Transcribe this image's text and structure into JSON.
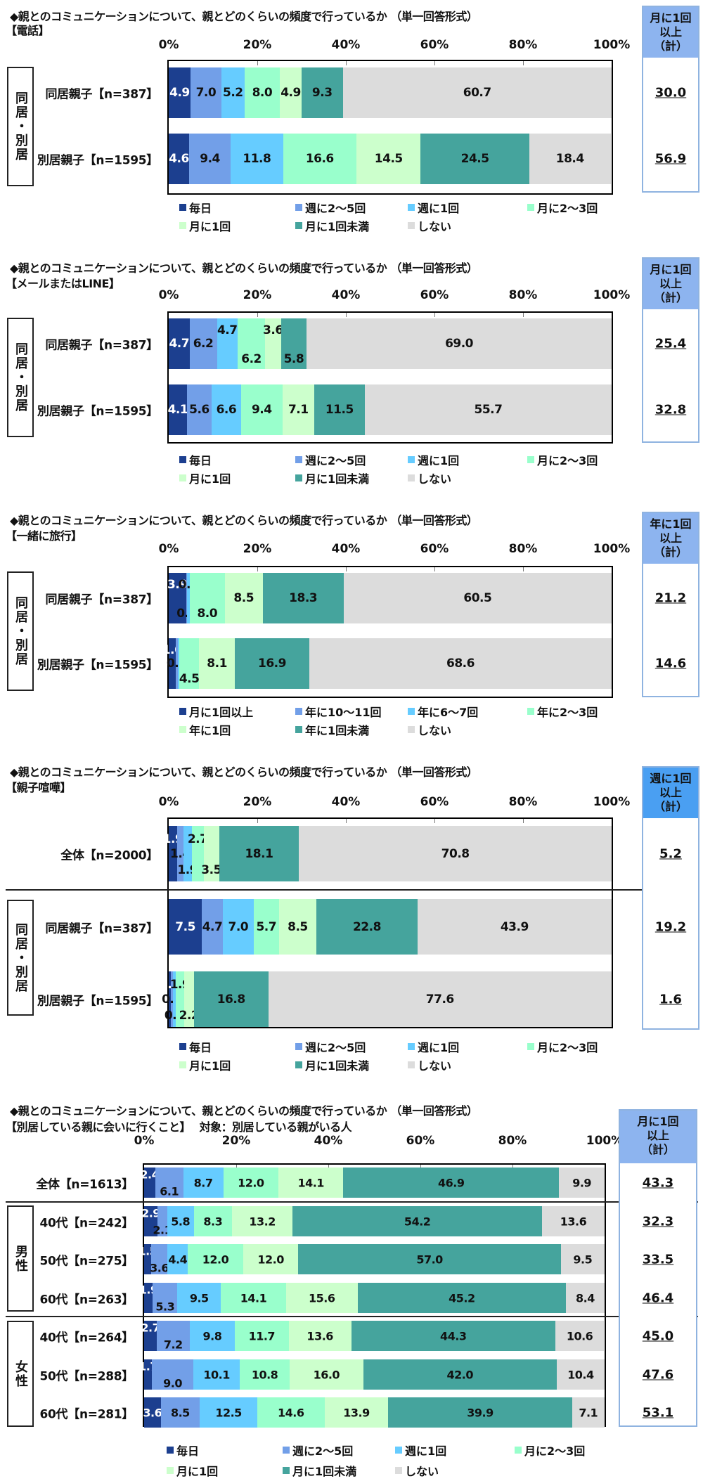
{
  "question": "◆親とのコミュニケーションについて、親とどのくらいの頻度で行っているか （単一回答形式）",
  "axis_ticks": [
    "0%",
    "20%",
    "40%",
    "60%",
    "80%",
    "100%"
  ],
  "colors": {
    "c1": "#1c3f8f",
    "c2": "#729fe8",
    "c3": "#66ccff",
    "c4": "#99ffcc",
    "c5": "#ccffcc",
    "c6": "#45a49d",
    "c7": "#dcdcdc"
  },
  "legends": {
    "freq_month": [
      "毎日",
      "週に2～5回",
      "週に1回",
      "月に2～3回",
      "月に1回",
      "月に1回未満",
      "しない"
    ],
    "freq_year": [
      "月に1回以上",
      "年に10～11回",
      "年に6～7回",
      "年に2～3回",
      "年に1回",
      "年に1回未満",
      "しない"
    ]
  },
  "group_labels": {
    "living": "同居・別居",
    "male": "男性",
    "female": "女性"
  },
  "charts": [
    {
      "subtitle": "【電話】",
      "side_header": [
        "月に1回",
        "以上",
        "（計）"
      ],
      "rows": [
        {
          "label": "同居親子【n=387】",
          "total": "30.0"
        },
        {
          "label": "別居親子【n=1595】",
          "total": "56.9"
        }
      ]
    },
    {
      "subtitle": "【メールまたはLINE】",
      "side_header": [
        "月に1回",
        "以上",
        "（計）"
      ],
      "rows": [
        {
          "label": "同居親子【n=387】",
          "total": "25.4"
        },
        {
          "label": "別居親子【n=1595】",
          "total": "32.8"
        }
      ]
    },
    {
      "subtitle": "【一緒に旅行】",
      "side_header": [
        "年に1回",
        "以上",
        "（計）"
      ],
      "rows": [
        {
          "label": "同居親子【n=387】",
          "total": "21.2"
        },
        {
          "label": "別居親子【n=1595】",
          "total": "14.6"
        }
      ]
    },
    {
      "subtitle": "【親子喧嘩】",
      "side_header": [
        "週に1回",
        "以上",
        "（計）"
      ],
      "rows": [
        {
          "label": "全体【n=2000】",
          "total": "5.2"
        },
        {
          "label": "同居親子【n=387】",
          "total": "19.2"
        },
        {
          "label": "別居親子【n=1595】",
          "total": "1.6"
        }
      ]
    },
    {
      "subtitle": "【別居している親に会いに行くこと】　 対象：別居している親がいる人",
      "side_header": [
        "月に1回",
        "以上",
        "（計）"
      ],
      "rows": [
        {
          "label": "全体【n=1613】",
          "total": "43.3"
        },
        {
          "label": "40代【n=242】",
          "total": "32.3"
        },
        {
          "label": "50代【n=275】",
          "total": "33.5"
        },
        {
          "label": "60代【n=263】",
          "total": "46.4"
        },
        {
          "label": "40代【n=264】",
          "total": "45.0"
        },
        {
          "label": "50代【n=288】",
          "total": "47.6"
        },
        {
          "label": "60代【n=281】",
          "total": "53.1"
        }
      ]
    }
  ],
  "chart_data": [
    {
      "type": "bar",
      "stacked": true,
      "orientation": "horizontal",
      "title": "◆親とのコミュニケーションについて、親とどのくらいの頻度で行っているか （単一回答形式）【電話】",
      "xlabel": "",
      "ylabel": "",
      "xlim": [
        0,
        100
      ],
      "categories": [
        "同居親子【n=387】",
        "別居親子【n=1595】"
      ],
      "series": [
        {
          "name": "毎日",
          "values": [
            4.9,
            4.6
          ]
        },
        {
          "name": "週に2～5回",
          "values": [
            7.0,
            9.4
          ]
        },
        {
          "name": "週に1回",
          "values": [
            5.2,
            11.8
          ]
        },
        {
          "name": "月に2～3回",
          "values": [
            8.0,
            16.6
          ]
        },
        {
          "name": "月に1回",
          "values": [
            4.9,
            14.5
          ]
        },
        {
          "name": "月に1回未満",
          "values": [
            9.3,
            24.5
          ]
        },
        {
          "name": "しない",
          "values": [
            60.7,
            18.4
          ]
        }
      ],
      "summary": {
        "name": "月に1回以上（計）",
        "values": [
          30.0,
          56.9
        ]
      },
      "legend_position": "bottom"
    },
    {
      "type": "bar",
      "stacked": true,
      "orientation": "horizontal",
      "title": "◆親とのコミュニケーションについて、親とどのくらいの頻度で行っているか （単一回答形式）【メールまたはLINE】",
      "xlabel": "",
      "ylabel": "",
      "xlim": [
        0,
        100
      ],
      "categories": [
        "同居親子【n=387】",
        "別居親子【n=1595】"
      ],
      "series": [
        {
          "name": "毎日",
          "values": [
            4.7,
            4.1
          ]
        },
        {
          "name": "週に2～5回",
          "values": [
            6.2,
            5.6
          ]
        },
        {
          "name": "週に1回",
          "values": [
            4.7,
            6.6
          ]
        },
        {
          "name": "月に2～3回",
          "values": [
            6.2,
            9.4
          ]
        },
        {
          "name": "月に1回",
          "values": [
            3.6,
            7.1
          ]
        },
        {
          "name": "月に1回未満",
          "values": [
            5.8,
            11.5
          ]
        },
        {
          "name": "しない",
          "values": [
            69.0,
            55.7
          ]
        }
      ],
      "summary": {
        "name": "月に1回以上（計）",
        "values": [
          25.4,
          32.8
        ]
      },
      "legend_position": "bottom"
    },
    {
      "type": "bar",
      "stacked": true,
      "orientation": "horizontal",
      "title": "◆親とのコミュニケーションについて、親とどのくらいの頻度で行っているか （単一回答形式）【一緒に旅行】",
      "xlabel": "",
      "ylabel": "",
      "xlim": [
        0,
        100
      ],
      "categories": [
        "同居親子【n=387】",
        "別居親子【n=1595】"
      ],
      "series": [
        {
          "name": "月に1回以上",
          "values": [
            3.9,
            1.6
          ]
        },
        {
          "name": "年に10～11回",
          "values": [
            0.3,
            0.4
          ]
        },
        {
          "name": "年に6～7回",
          "values": [
            0.5,
            0.4
          ]
        },
        {
          "name": "年に2～3回",
          "values": [
            8.0,
            4.5
          ]
        },
        {
          "name": "年に1回",
          "values": [
            8.5,
            8.1
          ]
        },
        {
          "name": "年に1回未満",
          "values": [
            18.3,
            16.9
          ]
        },
        {
          "name": "しない",
          "values": [
            60.5,
            68.6
          ]
        }
      ],
      "summary": {
        "name": "年に1回以上（計）",
        "values": [
          21.2,
          14.6
        ]
      },
      "legend_position": "bottom"
    },
    {
      "type": "bar",
      "stacked": true,
      "orientation": "horizontal",
      "title": "◆親とのコミュニケーションについて、親とどのくらいの頻度で行っているか （単一回答形式）【親子喧嘩】",
      "xlabel": "",
      "ylabel": "",
      "xlim": [
        0,
        100
      ],
      "categories": [
        "全体【n=2000】",
        "同居親子【n=387】",
        "別居親子【n=1595】"
      ],
      "series": [
        {
          "name": "毎日",
          "values": [
            1.9,
            7.5,
            0.4
          ]
        },
        {
          "name": "週に2～5回",
          "values": [
            1.4,
            4.7,
            0.6
          ]
        },
        {
          "name": "週に1回",
          "values": [
            1.9,
            7.0,
            0.6
          ]
        },
        {
          "name": "月に2～3回",
          "values": [
            2.7,
            5.7,
            1.9
          ]
        },
        {
          "name": "月に1回",
          "values": [
            3.5,
            8.5,
            2.2
          ]
        },
        {
          "name": "月に1回未満",
          "values": [
            18.1,
            22.8,
            16.8
          ]
        },
        {
          "name": "しない",
          "values": [
            70.8,
            43.9,
            77.6
          ]
        }
      ],
      "summary": {
        "name": "週に1回以上（計）",
        "values": [
          5.2,
          19.2,
          1.6
        ]
      },
      "legend_position": "bottom"
    },
    {
      "type": "bar",
      "stacked": true,
      "orientation": "horizontal",
      "title": "◆親とのコミュニケーションについて、親とどのくらいの頻度で行っているか （単一回答形式）【別居している親に会いに行くこと】 対象：別居している親がいる人",
      "xlabel": "",
      "ylabel": "",
      "xlim": [
        0,
        100
      ],
      "categories": [
        "全体【n=1613】",
        "男性 40代【n=242】",
        "男性 50代【n=275】",
        "男性 60代【n=263】",
        "女性 40代【n=264】",
        "女性 50代【n=288】",
        "女性 60代【n=281】"
      ],
      "series": [
        {
          "name": "毎日",
          "values": [
            2.4,
            2.9,
            1.5,
            1.9,
            2.7,
            1.7,
            3.6
          ]
        },
        {
          "name": "週に2～5回",
          "values": [
            6.1,
            2.1,
            3.6,
            5.3,
            7.2,
            9.0,
            8.5
          ]
        },
        {
          "name": "週に1回",
          "values": [
            8.7,
            5.8,
            4.4,
            9.5,
            9.8,
            10.1,
            12.5
          ]
        },
        {
          "name": "月に2～3回",
          "values": [
            12.0,
            8.3,
            12.0,
            14.1,
            11.7,
            10.8,
            14.6
          ]
        },
        {
          "name": "月に1回",
          "values": [
            14.1,
            13.2,
            12.0,
            15.6,
            13.6,
            16.0,
            13.9
          ]
        },
        {
          "name": "月に1回未満",
          "values": [
            46.9,
            54.2,
            57.0,
            45.2,
            44.3,
            42.0,
            39.9
          ]
        },
        {
          "name": "しない",
          "values": [
            9.9,
            13.6,
            9.5,
            8.4,
            10.6,
            10.4,
            7.1
          ]
        }
      ],
      "summary": {
        "name": "月に1回以上（計）",
        "values": [
          43.3,
          32.3,
          33.5,
          46.4,
          45.0,
          47.6,
          53.1
        ]
      },
      "legend_position": "bottom"
    }
  ]
}
